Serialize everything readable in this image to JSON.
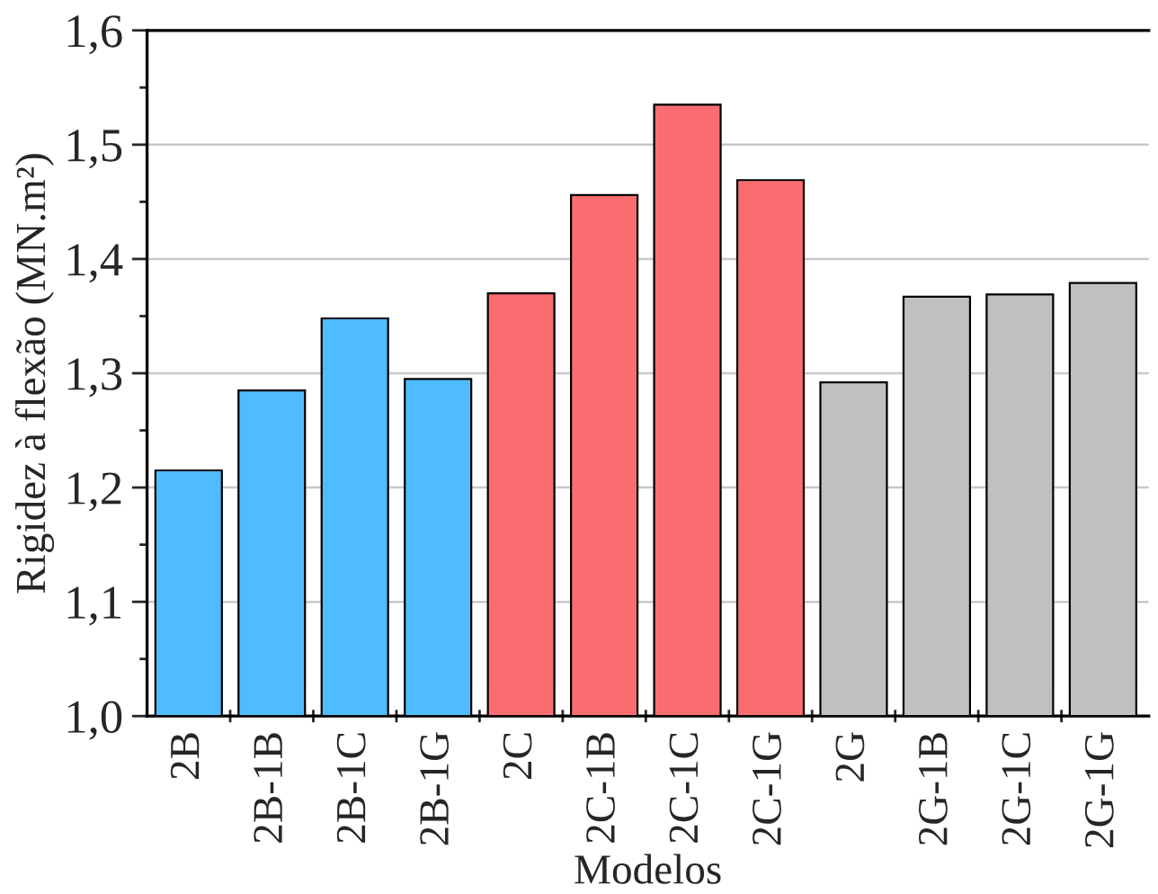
{
  "chart_data": {
    "type": "bar",
    "xlabel": "Modelos",
    "ylabel": "Rigidez à flexão (MN.m²)",
    "categories": [
      "2B",
      "2B-1B",
      "2B-1C",
      "2B-1G",
      "2C",
      "2C-1B",
      "2C-1C",
      "2C-1G",
      "2G",
      "2G-1B",
      "2G-1C",
      "2G-1G"
    ],
    "values": [
      1.215,
      1.285,
      1.348,
      1.295,
      1.37,
      1.456,
      1.535,
      1.469,
      1.292,
      1.367,
      1.369,
      1.379
    ],
    "colors": [
      "#4fbcff",
      "#4fbcff",
      "#4fbcff",
      "#4fbcff",
      "#f96d70",
      "#f96d70",
      "#f96d70",
      "#f96d70",
      "#c0c0c0",
      "#c0c0c0",
      "#c0c0c0",
      "#c0c0c0"
    ],
    "ylim": [
      1.0,
      1.6
    ],
    "yticks": [
      {
        "value": 1.0,
        "label": "1,0"
      },
      {
        "value": 1.1,
        "label": "1,1"
      },
      {
        "value": 1.2,
        "label": "1,2"
      },
      {
        "value": 1.3,
        "label": "1,3"
      },
      {
        "value": 1.4,
        "label": "1,4"
      },
      {
        "value": 1.5,
        "label": "1,5"
      },
      {
        "value": 1.6,
        "label": "1,6"
      }
    ],
    "grid": "y",
    "legend": false
  }
}
